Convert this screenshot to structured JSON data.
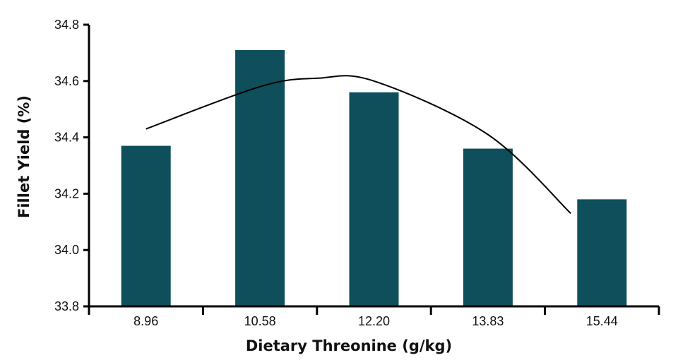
{
  "chart_data": {
    "type": "bar",
    "title": "",
    "xlabel": "Dietary Threonine (g/kg)",
    "ylabel": "Fillet Yield (%)",
    "categories": [
      "8.96",
      "10.58",
      "12.20",
      "13.83",
      "15.44"
    ],
    "values": [
      34.37,
      34.71,
      34.56,
      34.36,
      34.18
    ],
    "ylim": [
      33.8,
      34.8
    ],
    "yticks": [
      "34.8",
      "34.6",
      "34.4",
      "34.2",
      "34.0",
      "33.8"
    ],
    "grid": false,
    "legend": null,
    "bar_color": "#0e4f5b",
    "trendline": {
      "type": "quadratic",
      "color": "#000000",
      "points": [
        [
          8.96,
          34.43
        ],
        [
          10.58,
          34.58
        ],
        [
          11.4,
          34.61
        ],
        [
          12.2,
          34.6
        ],
        [
          13.83,
          34.41
        ],
        [
          15.0,
          34.13
        ]
      ]
    }
  }
}
